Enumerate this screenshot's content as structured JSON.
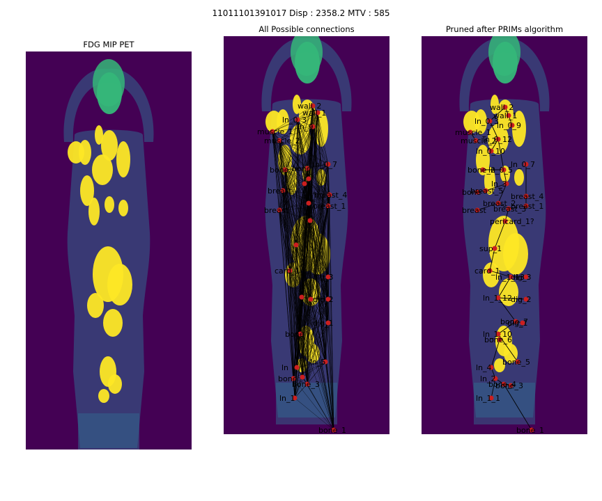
{
  "figure": {
    "suptitle": "11011101391017   Disp : 2358.2  MTV : 585"
  },
  "panels": [
    {
      "title": "FDG MIP PET"
    },
    {
      "title": "All Possible connections"
    },
    {
      "title": "Pruned after PRIMs algorithm"
    }
  ],
  "colors": {
    "background": "#440154",
    "uptake_high": "#fde725",
    "uptake_mid": "#35b779",
    "body_low": "#31688e",
    "node": "#cc1f1f",
    "edge": "#000000"
  },
  "graph_all": {
    "labels": [
      "wall_2",
      "wall_1",
      "ln_0_3",
      "ln_9",
      "muscle_1",
      "muscle_2",
      "ln_0_7",
      "bone",
      "bone",
      "breast_4",
      "breast",
      "breast_1",
      "breast",
      "card_1",
      "dig_3",
      "dig_2",
      "dig_1",
      "bone",
      "ln_5",
      "ln",
      "bone",
      "bone_3",
      "ln_1",
      "bone_1"
    ]
  },
  "graph_pruned": {
    "labels": [
      "wall_2",
      "wall_1",
      "ln_0_3",
      "ln_0_9",
      "muscle_1",
      "ln_0_12",
      "muscle_2",
      "ln_0_10",
      "ln_0_7",
      "bone_2",
      "ln_0_5",
      "ln_3",
      "bone",
      "breast_5",
      "breast_4",
      "breast_1",
      "breast_2",
      "breast",
      "breast_3",
      "pericard_1?",
      "sup_1",
      "card_1",
      "ln_1_13",
      "dig_3",
      "ln_1_12",
      "dig_2",
      "bone_7",
      "dig_1",
      "ln_1_10",
      "bone_6",
      "bone_5",
      "ln_4",
      "ln_2",
      "bone_4",
      "bone_3",
      "ln_1_1",
      "bone_1"
    ]
  }
}
